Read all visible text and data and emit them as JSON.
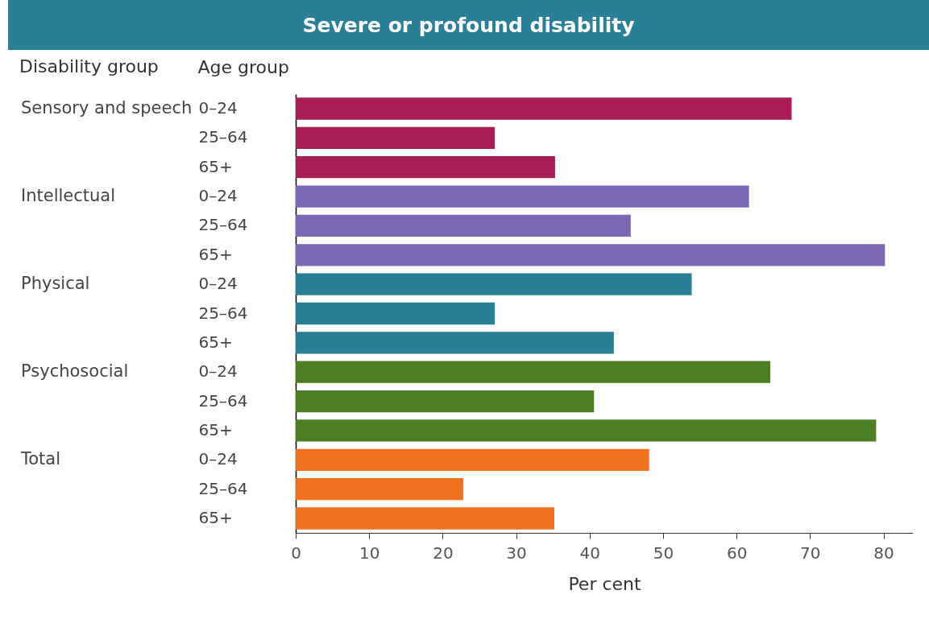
{
  "chart_data": {
    "type": "bar",
    "orientation": "horizontal",
    "title": "Severe or profound disability",
    "annotations": [
      "Disability group",
      "Sensory and speech",
      "Intellectual",
      "Physical",
      "Psychosocial",
      "Total"
    ],
    "ylabel": "Age group",
    "xlabel": "Per cent",
    "categories": [
      "0–24",
      "25–64",
      "65+",
      "0–24",
      "25–64",
      "65+",
      "0–24",
      "25–64",
      "65+",
      "0–24",
      "25–64",
      "65+",
      "0–24",
      "25–64",
      "65+"
    ],
    "series": [
      {
        "color": "#a91d54",
        "values": [
          67.5,
          27.1,
          35.3,
          null,
          null,
          null,
          null,
          null,
          null,
          null,
          null,
          null,
          null,
          null,
          null
        ]
      },
      {
        "color": "#7b68b5",
        "values": [
          null,
          null,
          null,
          61.7,
          45.6,
          80.2,
          null,
          null,
          null,
          null,
          null,
          null,
          null,
          null,
          null
        ]
      },
      {
        "color": "#2a7f96",
        "values": [
          null,
          null,
          null,
          null,
          null,
          null,
          53.9,
          27.1,
          43.3,
          null,
          null,
          null,
          null,
          null,
          null
        ]
      },
      {
        "color": "#4c7f24",
        "values": [
          null,
          null,
          null,
          null,
          null,
          null,
          null,
          null,
          null,
          64.6,
          40.6,
          79.0,
          null,
          null,
          null
        ]
      },
      {
        "color": "#f37021",
        "values": [
          null,
          null,
          null,
          null,
          null,
          null,
          null,
          null,
          null,
          null,
          null,
          null,
          48.1,
          22.8,
          35.2
        ]
      }
    ],
    "xlim": [
      0,
      84
    ],
    "xticks": [
      0,
      10,
      20,
      30,
      40,
      50,
      60,
      70,
      80
    ],
    "grid": false,
    "legend": false
  }
}
